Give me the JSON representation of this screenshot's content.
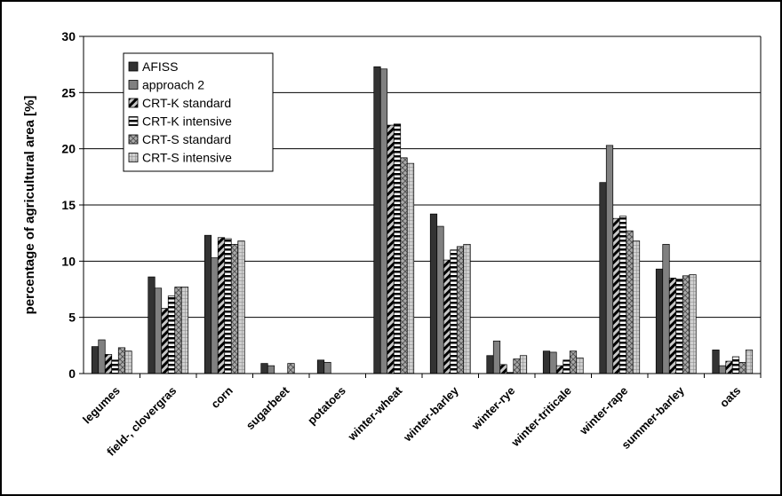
{
  "chart_data": {
    "type": "bar",
    "ylabel": "percentage of agricultural area [%]",
    "xlabel": "",
    "ylim": [
      0,
      30
    ],
    "yticks": [
      0,
      5,
      10,
      15,
      20,
      25,
      30
    ],
    "grid": true,
    "legend_position": "top-left",
    "categories": [
      "legumes",
      "field-, clovergras",
      "corn",
      "sugarbeet",
      "potatoes",
      "winter-wheat",
      "winter-barley",
      "winter-rye",
      "winter-triticale",
      "winter-rape",
      "summer-barley",
      "oats"
    ],
    "series": [
      {
        "name": "AFISS",
        "color": "#333333",
        "pattern": "solid-dark",
        "values": [
          2.4,
          8.6,
          12.3,
          0.9,
          1.2,
          27.3,
          14.2,
          1.6,
          2.0,
          17.0,
          9.3,
          2.1
        ]
      },
      {
        "name": "approach 2",
        "color": "#808080",
        "pattern": "solid-gray",
        "values": [
          3.0,
          7.6,
          10.3,
          0.7,
          1.0,
          27.1,
          13.1,
          2.9,
          1.9,
          20.3,
          11.5,
          0.7
        ]
      },
      {
        "name": "CRT-K standard",
        "color": "#9a9a9a",
        "pattern": "diagonal",
        "values": [
          1.7,
          5.8,
          12.1,
          0.0,
          0.0,
          22.1,
          10.1,
          0.8,
          0.7,
          13.8,
          8.5,
          1.1
        ]
      },
      {
        "name": "CRT-K intensive",
        "color": "#000000",
        "pattern": "horizontal",
        "values": [
          1.2,
          6.9,
          12.0,
          0.0,
          0.0,
          22.2,
          11.0,
          0.1,
          1.2,
          14.0,
          8.4,
          1.5
        ]
      },
      {
        "name": "CRT-S standard",
        "color": "#9a9a9a",
        "pattern": "crosshatch",
        "values": [
          2.3,
          7.7,
          11.5,
          0.9,
          0.0,
          19.2,
          11.3,
          1.3,
          2.0,
          12.7,
          8.7,
          1.0
        ]
      },
      {
        "name": "CRT-S intensive",
        "color": "#b0b0b0",
        "pattern": "grid",
        "values": [
          2.0,
          7.7,
          11.8,
          0.0,
          0.0,
          18.7,
          11.5,
          1.6,
          1.4,
          11.8,
          8.8,
          2.1
        ]
      }
    ]
  }
}
